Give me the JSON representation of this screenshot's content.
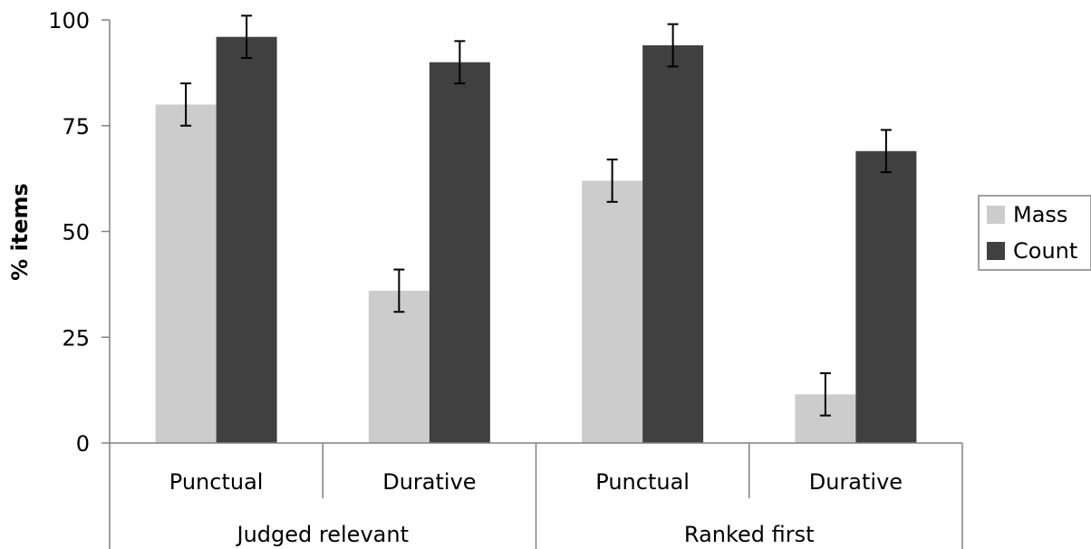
{
  "chart_data": {
    "type": "bar",
    "title": "",
    "xlabel": "",
    "ylabel": "% items",
    "ylim": [
      0,
      100
    ],
    "yticks": [
      0,
      25,
      50,
      75,
      100
    ],
    "grid": false,
    "legend_position": "right",
    "group_labels": [
      "Judged relevant",
      "Ranked first"
    ],
    "categories": [
      "Punctual",
      "Durative",
      "Punctual",
      "Durative"
    ],
    "series": [
      {
        "name": "Mass",
        "color": "#cccccc",
        "values": [
          80,
          36,
          62,
          11.5
        ],
        "error": [
          5,
          5,
          5,
          5
        ]
      },
      {
        "name": "Count",
        "color": "#404040",
        "values": [
          96,
          90,
          94,
          69
        ],
        "error": [
          5,
          5,
          5,
          5
        ]
      }
    ]
  }
}
